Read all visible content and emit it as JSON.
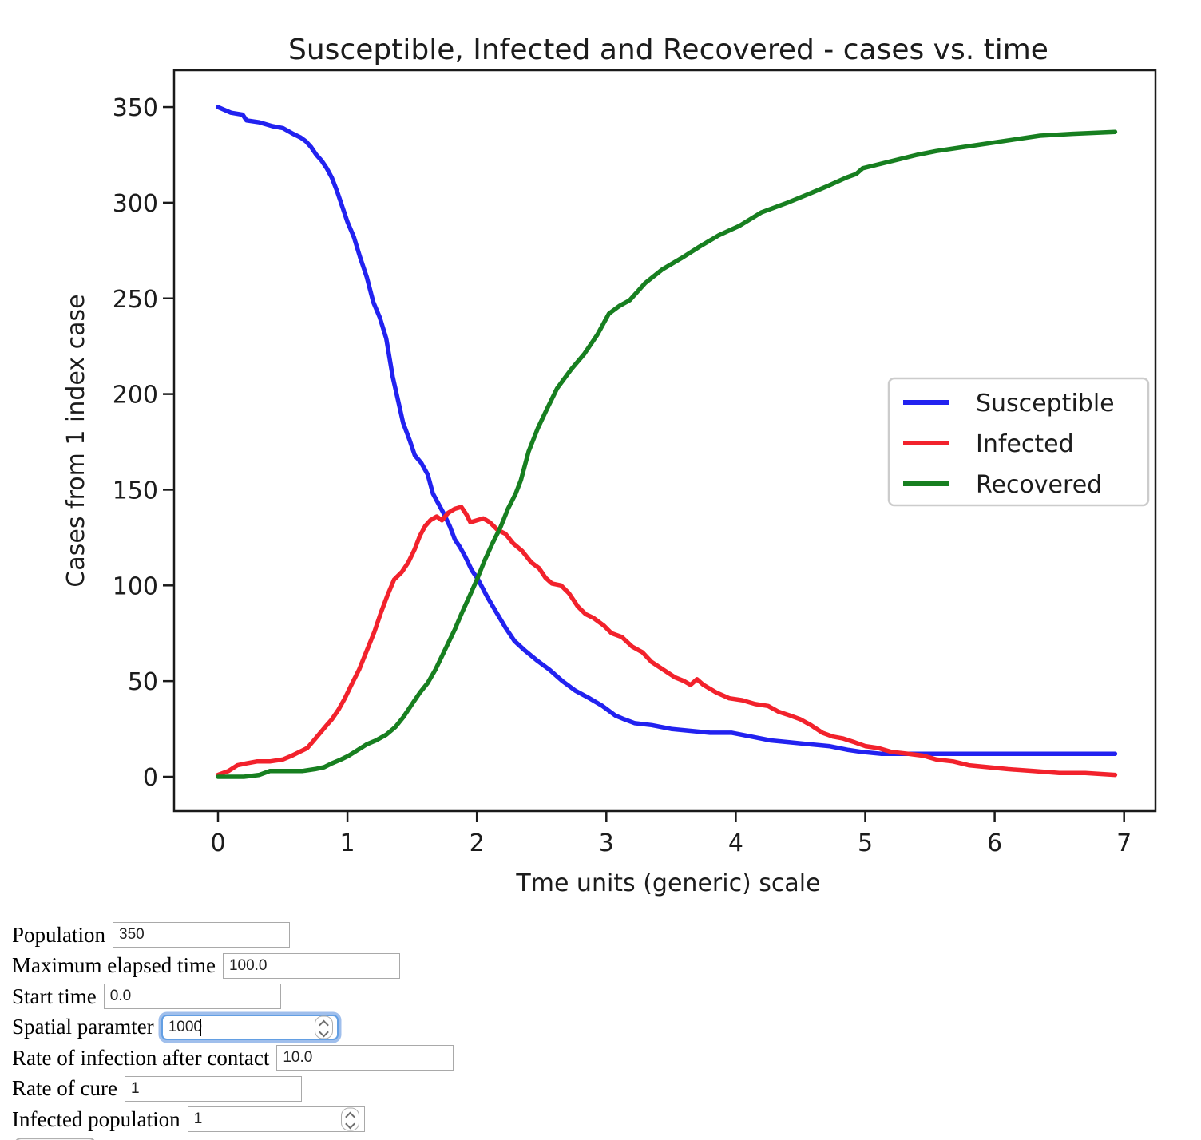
{
  "chart_data": {
    "type": "line",
    "title": "Susceptible, Infected and Recovered - cases vs. time",
    "xlabel": "Tme units (generic) scale",
    "ylabel": "Cases from 1 index case",
    "xlim": [
      -0.34,
      7.25
    ],
    "ylim": [
      -20,
      369
    ],
    "x_ticks": [
      0,
      1,
      2,
      3,
      4,
      5,
      6,
      7
    ],
    "y_ticks": [
      0,
      50,
      100,
      150,
      200,
      250,
      300,
      350
    ],
    "grid": false,
    "legend_position": "center-right",
    "frame_color": "#1a1a1a",
    "legend_border_color": "#cccccc",
    "series": [
      {
        "name": "Susceptible",
        "color": "#2222f0",
        "points": [
          [
            0,
            350
          ],
          [
            0.1,
            347
          ],
          [
            0.19,
            346
          ],
          [
            0.22,
            343
          ],
          [
            0.32,
            342
          ],
          [
            0.42,
            340
          ],
          [
            0.5,
            339
          ],
          [
            0.58,
            336
          ],
          [
            0.64,
            334
          ],
          [
            0.68,
            332
          ],
          [
            0.72,
            329
          ],
          [
            0.76,
            325
          ],
          [
            0.8,
            322
          ],
          [
            0.84,
            318
          ],
          [
            0.88,
            313
          ],
          [
            0.92,
            306
          ],
          [
            0.96,
            298
          ],
          [
            1.0,
            290
          ],
          [
            1.05,
            282
          ],
          [
            1.1,
            271
          ],
          [
            1.15,
            261
          ],
          [
            1.2,
            248
          ],
          [
            1.25,
            240
          ],
          [
            1.3,
            229
          ],
          [
            1.35,
            209
          ],
          [
            1.38,
            200
          ],
          [
            1.43,
            185
          ],
          [
            1.48,
            176
          ],
          [
            1.52,
            168
          ],
          [
            1.57,
            164
          ],
          [
            1.62,
            158
          ],
          [
            1.66,
            148
          ],
          [
            1.7,
            143
          ],
          [
            1.74,
            138
          ],
          [
            1.79,
            131
          ],
          [
            1.83,
            124
          ],
          [
            1.87,
            120
          ],
          [
            1.91,
            115
          ],
          [
            1.96,
            108
          ],
          [
            2.01,
            103
          ],
          [
            2.08,
            94
          ],
          [
            2.15,
            86
          ],
          [
            2.22,
            78
          ],
          [
            2.29,
            71
          ],
          [
            2.37,
            66
          ],
          [
            2.46,
            61
          ],
          [
            2.56,
            56
          ],
          [
            2.66,
            50
          ],
          [
            2.76,
            45
          ],
          [
            2.87,
            41
          ],
          [
            2.97,
            37
          ],
          [
            3.07,
            32
          ],
          [
            3.14,
            30
          ],
          [
            3.22,
            28
          ],
          [
            3.35,
            27
          ],
          [
            3.5,
            25
          ],
          [
            3.65,
            24
          ],
          [
            3.8,
            23
          ],
          [
            3.97,
            23
          ],
          [
            4.12,
            21
          ],
          [
            4.27,
            19
          ],
          [
            4.42,
            18
          ],
          [
            4.57,
            17
          ],
          [
            4.72,
            16
          ],
          [
            4.87,
            14
          ],
          [
            4.97,
            13
          ],
          [
            5.12,
            12
          ],
          [
            5.5,
            12
          ],
          [
            6.0,
            12
          ],
          [
            6.5,
            12
          ],
          [
            6.93,
            12
          ]
        ]
      },
      {
        "name": "Infected",
        "color": "#f2222c",
        "points": [
          [
            0,
            1
          ],
          [
            0.08,
            3
          ],
          [
            0.15,
            6
          ],
          [
            0.22,
            7
          ],
          [
            0.3,
            8
          ],
          [
            0.4,
            8
          ],
          [
            0.5,
            9
          ],
          [
            0.57,
            11
          ],
          [
            0.63,
            13
          ],
          [
            0.69,
            15
          ],
          [
            0.74,
            19
          ],
          [
            0.79,
            23
          ],
          [
            0.84,
            27
          ],
          [
            0.88,
            30
          ],
          [
            0.93,
            35
          ],
          [
            0.98,
            41
          ],
          [
            1.03,
            48
          ],
          [
            1.09,
            56
          ],
          [
            1.15,
            66
          ],
          [
            1.21,
            76
          ],
          [
            1.26,
            86
          ],
          [
            1.31,
            95
          ],
          [
            1.36,
            103
          ],
          [
            1.42,
            107
          ],
          [
            1.47,
            112
          ],
          [
            1.52,
            119
          ],
          [
            1.56,
            126
          ],
          [
            1.6,
            131
          ],
          [
            1.64,
            134
          ],
          [
            1.69,
            136
          ],
          [
            1.73,
            134
          ],
          [
            1.78,
            138
          ],
          [
            1.83,
            140
          ],
          [
            1.88,
            141
          ],
          [
            1.92,
            137
          ],
          [
            1.95,
            133
          ],
          [
            2.0,
            134
          ],
          [
            2.05,
            135
          ],
          [
            2.1,
            133
          ],
          [
            2.16,
            129
          ],
          [
            2.22,
            127
          ],
          [
            2.28,
            122
          ],
          [
            2.35,
            118
          ],
          [
            2.42,
            112
          ],
          [
            2.48,
            109
          ],
          [
            2.53,
            104
          ],
          [
            2.58,
            101
          ],
          [
            2.65,
            100
          ],
          [
            2.71,
            96
          ],
          [
            2.78,
            89
          ],
          [
            2.84,
            85
          ],
          [
            2.9,
            83
          ],
          [
            2.98,
            79
          ],
          [
            3.04,
            75
          ],
          [
            3.12,
            73
          ],
          [
            3.2,
            68
          ],
          [
            3.28,
            65
          ],
          [
            3.35,
            60
          ],
          [
            3.44,
            56
          ],
          [
            3.53,
            52
          ],
          [
            3.6,
            50
          ],
          [
            3.65,
            48
          ],
          [
            3.7,
            51
          ],
          [
            3.75,
            48
          ],
          [
            3.85,
            44
          ],
          [
            3.95,
            41
          ],
          [
            4.05,
            40
          ],
          [
            4.15,
            38
          ],
          [
            4.25,
            37
          ],
          [
            4.33,
            34
          ],
          [
            4.42,
            32
          ],
          [
            4.5,
            30
          ],
          [
            4.58,
            27
          ],
          [
            4.67,
            23
          ],
          [
            4.75,
            21
          ],
          [
            4.83,
            20
          ],
          [
            4.92,
            18
          ],
          [
            5.0,
            16
          ],
          [
            5.1,
            15
          ],
          [
            5.2,
            13
          ],
          [
            5.33,
            12
          ],
          [
            5.45,
            11
          ],
          [
            5.55,
            9
          ],
          [
            5.68,
            8
          ],
          [
            5.8,
            6
          ],
          [
            5.95,
            5
          ],
          [
            6.1,
            4
          ],
          [
            6.3,
            3
          ],
          [
            6.5,
            2
          ],
          [
            6.7,
            2
          ],
          [
            6.93,
            1
          ]
        ]
      },
      {
        "name": "Recovered",
        "color": "#177f20",
        "points": [
          [
            0,
            0
          ],
          [
            0.2,
            0
          ],
          [
            0.32,
            1
          ],
          [
            0.4,
            3
          ],
          [
            0.55,
            3
          ],
          [
            0.65,
            3
          ],
          [
            0.75,
            4
          ],
          [
            0.82,
            5
          ],
          [
            0.88,
            7
          ],
          [
            0.95,
            9
          ],
          [
            1.01,
            11
          ],
          [
            1.08,
            14
          ],
          [
            1.15,
            17
          ],
          [
            1.22,
            19
          ],
          [
            1.3,
            22
          ],
          [
            1.37,
            26
          ],
          [
            1.43,
            31
          ],
          [
            1.5,
            38
          ],
          [
            1.56,
            44
          ],
          [
            1.62,
            49
          ],
          [
            1.68,
            56
          ],
          [
            1.73,
            63
          ],
          [
            1.78,
            70
          ],
          [
            1.83,
            77
          ],
          [
            1.88,
            85
          ],
          [
            1.94,
            94
          ],
          [
            2.0,
            103
          ],
          [
            2.06,
            113
          ],
          [
            2.12,
            122
          ],
          [
            2.18,
            130
          ],
          [
            2.24,
            140
          ],
          [
            2.3,
            148
          ],
          [
            2.34,
            155
          ],
          [
            2.4,
            170
          ],
          [
            2.47,
            182
          ],
          [
            2.54,
            192
          ],
          [
            2.62,
            203
          ],
          [
            2.73,
            213
          ],
          [
            2.83,
            221
          ],
          [
            2.93,
            231
          ],
          [
            3.02,
            242
          ],
          [
            3.1,
            246
          ],
          [
            3.18,
            249
          ],
          [
            3.3,
            258
          ],
          [
            3.43,
            265
          ],
          [
            3.58,
            271
          ],
          [
            3.72,
            277
          ],
          [
            3.87,
            283
          ],
          [
            4.03,
            288
          ],
          [
            4.2,
            295
          ],
          [
            4.4,
            300
          ],
          [
            4.58,
            305
          ],
          [
            4.72,
            309
          ],
          [
            4.85,
            313
          ],
          [
            4.93,
            315
          ],
          [
            4.98,
            318
          ],
          [
            5.1,
            320
          ],
          [
            5.22,
            322
          ],
          [
            5.4,
            325
          ],
          [
            5.55,
            327
          ],
          [
            5.75,
            329
          ],
          [
            5.95,
            331
          ],
          [
            6.15,
            333
          ],
          [
            6.35,
            335
          ],
          [
            6.6,
            336
          ],
          [
            6.93,
            337
          ]
        ]
      }
    ]
  },
  "form": {
    "rows": [
      {
        "label": "Population",
        "value": "350",
        "type": "text",
        "focused": false
      },
      {
        "label": "Maximum elapsed time",
        "value": "100.0",
        "type": "text",
        "focused": false
      },
      {
        "label": "Start time",
        "value": "0.0",
        "type": "text",
        "focused": false
      },
      {
        "label": "Spatial paramter",
        "value": "1000",
        "type": "number",
        "focused": true
      },
      {
        "label": "Rate of infection after contact",
        "value": "10.0",
        "type": "text",
        "focused": false
      },
      {
        "label": "Rate of cure",
        "value": "1",
        "type": "text",
        "focused": false
      },
      {
        "label": "Infected population",
        "value": "1",
        "type": "number",
        "focused": false
      }
    ]
  }
}
